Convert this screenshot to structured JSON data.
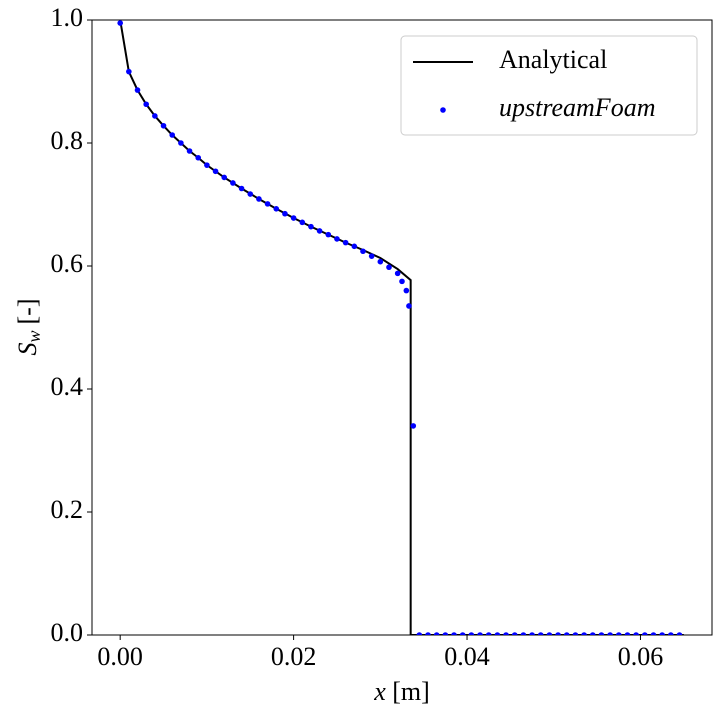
{
  "chart_data": {
    "type": "line",
    "xlabel": {
      "symbol": "x",
      "unit": "[m]"
    },
    "ylabel": {
      "symbol": "S",
      "subscript": "w",
      "unit": "[-]"
    },
    "xlim": [
      -0.00325,
      0.06825
    ],
    "ylim": [
      0,
      1
    ],
    "xticks": [
      {
        "value": 0,
        "label": "0.00"
      },
      {
        "value": 0.02,
        "label": "0.02"
      },
      {
        "value": 0.04,
        "label": "0.04"
      },
      {
        "value": 0.06,
        "label": "0.06"
      }
    ],
    "yticks": [
      {
        "value": 0,
        "label": "0.0"
      },
      {
        "value": 0.2,
        "label": "0.2"
      },
      {
        "value": 0.4,
        "label": "0.4"
      },
      {
        "value": 0.6,
        "label": "0.6"
      },
      {
        "value": 0.8,
        "label": "0.8"
      },
      {
        "value": 1,
        "label": "1.0"
      }
    ],
    "legend": "upper right",
    "series": [
      {
        "name": "Analytical",
        "type": "line",
        "color": "#000000",
        "x": [
          0,
          0.001,
          0.002,
          0.003,
          0.004,
          0.005,
          0.006,
          0.007,
          0.008,
          0.009,
          0.01,
          0.012,
          0.014,
          0.016,
          0.018,
          0.02,
          0.022,
          0.024,
          0.026,
          0.028,
          0.03,
          0.032,
          0.0335,
          0.0335,
          0.065
        ],
        "values": [
          1.0,
          0.916,
          0.886,
          0.863,
          0.844,
          0.828,
          0.813,
          0.8,
          0.787,
          0.776,
          0.764,
          0.744,
          0.726,
          0.709,
          0.693,
          0.678,
          0.664,
          0.651,
          0.638,
          0.626,
          0.613,
          0.595,
          0.577,
          0,
          0
        ]
      },
      {
        "name": "upstreamFoam",
        "type": "scatter",
        "color": "#0000ff",
        "x": [
          0,
          0.001,
          0.002,
          0.003,
          0.004,
          0.005,
          0.006,
          0.007,
          0.008,
          0.009,
          0.01,
          0.011,
          0.012,
          0.013,
          0.014,
          0.015,
          0.016,
          0.017,
          0.018,
          0.019,
          0.02,
          0.021,
          0.022,
          0.023,
          0.024,
          0.025,
          0.026,
          0.027,
          0.028,
          0.029,
          0.03,
          0.031,
          0.032,
          0.0325,
          0.033,
          0.0333,
          0.0338,
          0.0345,
          0.0355,
          0.0365,
          0.0375,
          0.0385,
          0.0395,
          0.0405,
          0.0415,
          0.0425,
          0.0435,
          0.0445,
          0.0455,
          0.0465,
          0.0475,
          0.0485,
          0.0495,
          0.0505,
          0.0515,
          0.0525,
          0.0535,
          0.0545,
          0.0555,
          0.0565,
          0.0575,
          0.0585,
          0.0595,
          0.0605,
          0.0615,
          0.0625,
          0.0635,
          0.0645
        ],
        "values": [
          0.995,
          0.916,
          0.886,
          0.863,
          0.844,
          0.828,
          0.813,
          0.8,
          0.787,
          0.776,
          0.764,
          0.754,
          0.744,
          0.735,
          0.726,
          0.717,
          0.709,
          0.701,
          0.693,
          0.685,
          0.678,
          0.671,
          0.664,
          0.657,
          0.651,
          0.644,
          0.638,
          0.632,
          0.624,
          0.616,
          0.607,
          0.598,
          0.588,
          0.575,
          0.56,
          0.535,
          0.34,
          0,
          0,
          0,
          0,
          0,
          0,
          0,
          0,
          0,
          0,
          0,
          0,
          0,
          0,
          0,
          0,
          0,
          0,
          0,
          0,
          0,
          0,
          0,
          0,
          0,
          0,
          0,
          0,
          0,
          0,
          0
        ]
      }
    ]
  }
}
